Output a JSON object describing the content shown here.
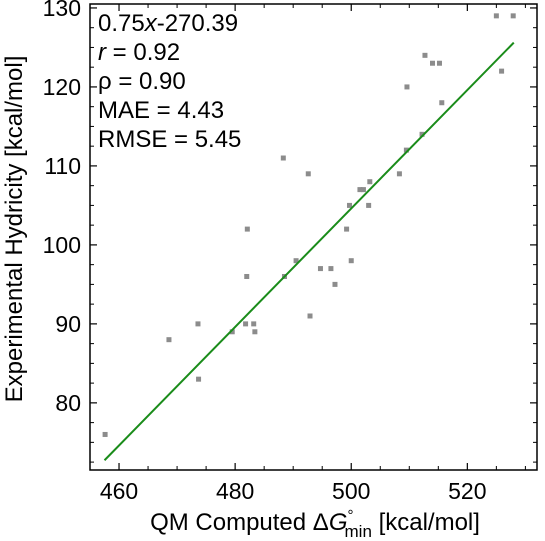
{
  "chart_data": {
    "type": "scatter",
    "xlabel": "QM Computed ΔG°min [kcal/mol]",
    "xlabel_parts": {
      "prefix": "QM Computed Δ",
      "symbol": "G",
      "superscript": "°",
      "subscript": "min",
      "suffix": " [kcal/mol]"
    },
    "ylabel": "Experimental Hydricity [kcal/mol]",
    "xlim": [
      455,
      532
    ],
    "ylim": [
      71.5,
      130.5
    ],
    "xticks": [
      460,
      480,
      500,
      520
    ],
    "yticks": [
      80,
      90,
      100,
      110,
      120,
      130
    ],
    "xminor_step": 5,
    "yminor_step": 2.5,
    "grid": false,
    "colors": {
      "points": "#8c8c8c",
      "fit_line": "#1a8c1a",
      "axes": "#000000"
    },
    "fit_line": {
      "slope": 0.75,
      "intercept": -270.39,
      "x_range": [
        457.5,
        528
      ]
    },
    "annotations": {
      "equation": {
        "coef": "0.75",
        "var": "x",
        "rest": "-270.39"
      },
      "r": {
        "symbol": "r",
        "text": " = 0.92"
      },
      "rho": "ρ = 0.90",
      "mae": "MAE = 4.43",
      "rmse": "RMSE = 5.45"
    },
    "series": [
      {
        "x": [
          457.6,
          468.6,
          473.6,
          473.7,
          479.5,
          481.8,
          482.0,
          482.1,
          483.2,
          483.4,
          488.3,
          488.5,
          490.5,
          492.6,
          492.9,
          494.7,
          496.5,
          497.2,
          499.2,
          499.7,
          500.0,
          501.5,
          502.1,
          503.0,
          503.2,
          508.3,
          509.5,
          509.6,
          512.2,
          512.7,
          514.0,
          515.2,
          515.6,
          525.0,
          525.9,
          527.9
        ],
        "y": [
          76,
          88,
          90,
          83,
          89,
          90,
          96,
          102,
          90,
          89,
          111,
          96,
          98,
          109,
          91,
          97,
          97,
          95,
          102,
          105,
          98,
          107,
          107,
          105,
          108,
          109,
          112,
          120,
          114,
          124,
          123,
          123,
          118,
          129,
          122,
          129
        ]
      }
    ]
  }
}
